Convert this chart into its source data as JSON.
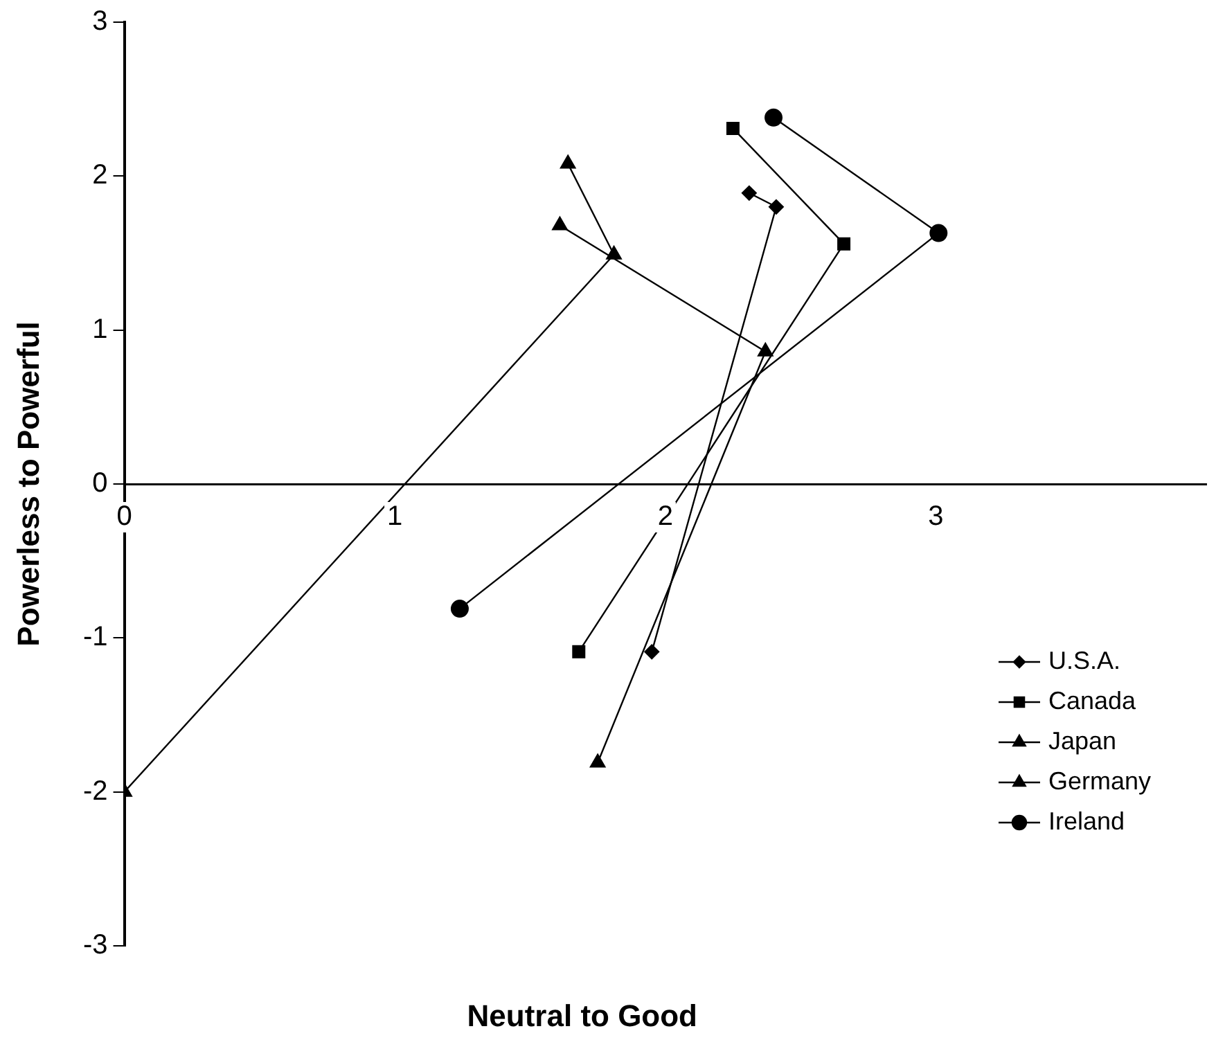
{
  "chart_data": {
    "type": "line",
    "xlabel": "Neutral to Good",
    "ylabel": "Powerless to Powerful",
    "xlim": [
      0,
      4
    ],
    "xticks": [
      0,
      1,
      2,
      3
    ],
    "ylim": [
      -3,
      3
    ],
    "yticks": [
      -3,
      -2,
      -1,
      0,
      1,
      2,
      3
    ],
    "grid": false,
    "legend": "bottom right",
    "line_style": "solid",
    "series": [
      {
        "name": "U.S.A.",
        "color": "#000000",
        "marker": "diamond",
        "x": [
          2.31,
          2.41,
          1.95
        ],
        "values": [
          1.89,
          1.8,
          -1.09
        ]
      },
      {
        "name": "Canada",
        "color": "#000000",
        "marker": "square",
        "x": [
          2.25,
          2.66,
          1.68
        ],
        "values": [
          2.31,
          1.56,
          -1.09
        ]
      },
      {
        "name": "Japan",
        "color": "#000000",
        "marker": "triangle",
        "x": [
          1.64,
          1.81,
          0
        ],
        "values": [
          2.08,
          1.49,
          -2
        ]
      },
      {
        "name": "Germany",
        "color": "#000000",
        "marker": "triangle",
        "x": [
          1.61,
          2.37,
          1.75
        ],
        "values": [
          1.68,
          0.86,
          -1.81
        ]
      },
      {
        "name": "Ireland",
        "color": "#000000",
        "marker": "circle",
        "x": [
          2.4,
          3.01,
          1.24
        ],
        "values": [
          2.38,
          1.63,
          -0.81
        ]
      }
    ]
  }
}
